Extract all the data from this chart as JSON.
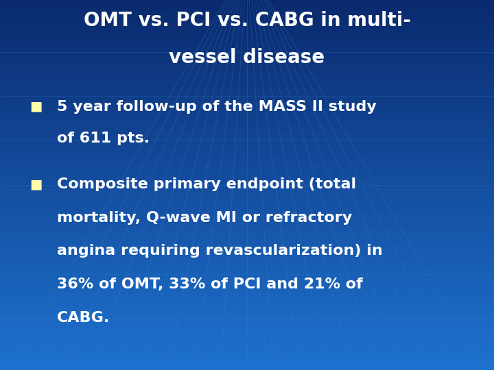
{
  "title_line1": "OMT vs. PCI vs. CABG in multi-",
  "title_line2": "vessel disease",
  "bullet1_line1": "5 year follow-up of the MASS II study",
  "bullet1_line2": "of 611 pts.",
  "bullet2_line1": "Composite primary endpoint (total",
  "bullet2_line2": "mortality, Q-wave MI or refractory",
  "bullet2_line3": "angina requiring revascularization) in",
  "bullet2_line4": "36% of OMT, 33% of PCI and 21% of",
  "bullet2_line5": "CABG.",
  "bg_color_top": "#1E72D0",
  "bg_color_bottom": "#0A2A6E",
  "text_color": "#FFFFFF",
  "bullet_color": "#FFFFAA",
  "title_fontsize": 20,
  "body_fontsize": 16,
  "fig_width": 7.2,
  "fig_height": 5.4,
  "dpi": 100
}
